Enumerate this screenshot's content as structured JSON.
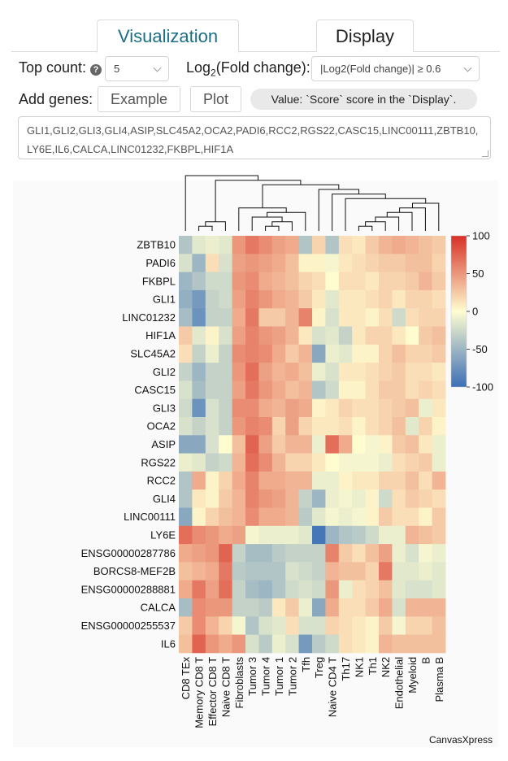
{
  "tabs": [
    {
      "label": "Visualization",
      "active": true
    },
    {
      "label": "Display",
      "active": false
    }
  ],
  "controls": {
    "top_count_label": "Top count:",
    "top_count_value": "5",
    "log2_label_prefix": "Log",
    "log2_label_sub": "2",
    "log2_label_suffix": "(Fold change):",
    "log2_value": "|Log2(Fold change)| ≥ 0.6",
    "add_genes_label": "Add genes:",
    "example_label": "Example",
    "plot_label": "Plot",
    "value_note": "Value: `Score` score in the `Display`.",
    "genes_text": "GLI1,GLI2,GLI3,GLI4,ASIP,SLC45A2,OCA2,PADI6,RCC2,RGS22,CASC15,LINC00111,ZBTB10,LY6E,IL6,CALCA,LINC01232,FKBPL,HIF1A"
  },
  "chart_data": {
    "type": "heatmap",
    "watermark": "CanvasXpress",
    "rows": [
      "ZBTB10",
      "PADI6",
      "FKBPL",
      "GLI1",
      "LINC01232",
      "HIF1A",
      "SLC45A2",
      "GLI2",
      "CASC15",
      "GLI3",
      "OCA2",
      "ASIP",
      "RGS22",
      "RCC2",
      "GLI4",
      "LINC00111",
      "LY6E",
      "ENSG00000287786",
      "BORCS8-MEF2B",
      "ENSG00000288881",
      "CALCA",
      "ENSG00000255537",
      "IL6"
    ],
    "columns": [
      "CD8 TEx",
      "Memory CD8 T",
      "Effector CD8 T",
      "Naive CD8 T",
      "Fibroblasts",
      "Tumor 3",
      "Tumor 4",
      "Tumor 1",
      "Tumor 2",
      "Tfh",
      "Treg",
      "Naive CD4 T",
      "Th17",
      "NK1",
      "Th1",
      "NK2",
      "Endothelial",
      "Myeloid",
      "B",
      "Plasma B"
    ],
    "values": [
      [
        -40,
        -15,
        -10,
        -15,
        50,
        65,
        55,
        45,
        40,
        -40,
        20,
        -40,
        15,
        10,
        25,
        35,
        40,
        35,
        30,
        25
      ],
      [
        -20,
        -50,
        15,
        -20,
        45,
        50,
        45,
        40,
        30,
        5,
        5,
        -5,
        10,
        15,
        20,
        25,
        25,
        30,
        30,
        20
      ],
      [
        -50,
        -40,
        -25,
        -25,
        50,
        55,
        40,
        35,
        30,
        20,
        15,
        0,
        15,
        15,
        10,
        20,
        20,
        25,
        35,
        25
      ],
      [
        -55,
        -70,
        -30,
        -25,
        45,
        60,
        50,
        40,
        35,
        25,
        10,
        -15,
        10,
        10,
        15,
        20,
        10,
        20,
        20,
        15
      ],
      [
        -45,
        -75,
        -30,
        -30,
        40,
        65,
        25,
        25,
        35,
        60,
        5,
        -20,
        10,
        10,
        5,
        15,
        -25,
        15,
        20,
        20
      ],
      [
        25,
        -15,
        5,
        -20,
        45,
        60,
        50,
        45,
        35,
        10,
        -20,
        -15,
        -30,
        10,
        20,
        20,
        10,
        0,
        25,
        30
      ],
      [
        15,
        -30,
        -10,
        -30,
        55,
        60,
        55,
        40,
        25,
        35,
        -60,
        -10,
        -15,
        5,
        5,
        20,
        30,
        20,
        20,
        25
      ],
      [
        -30,
        -50,
        -30,
        -30,
        50,
        70,
        45,
        35,
        40,
        30,
        -10,
        -20,
        10,
        10,
        15,
        20,
        25,
        15,
        15,
        10
      ],
      [
        -20,
        -45,
        -30,
        -30,
        45,
        65,
        50,
        40,
        30,
        35,
        -40,
        -25,
        5,
        5,
        15,
        25,
        25,
        15,
        20,
        15
      ],
      [
        -25,
        -75,
        -20,
        -30,
        55,
        55,
        40,
        35,
        45,
        40,
        5,
        10,
        20,
        15,
        15,
        20,
        25,
        30,
        -10,
        10
      ],
      [
        -20,
        -30,
        -20,
        -30,
        50,
        60,
        55,
        20,
        45,
        20,
        10,
        10,
        15,
        5,
        15,
        20,
        30,
        -15,
        20,
        5
      ],
      [
        -60,
        -60,
        -20,
        0,
        30,
        75,
        45,
        25,
        35,
        35,
        -10,
        70,
        40,
        0,
        -5,
        5,
        25,
        30,
        10,
        -10
      ],
      [
        -10,
        -15,
        -30,
        -25,
        35,
        70,
        55,
        35,
        20,
        20,
        10,
        0,
        -5,
        -5,
        -5,
        -10,
        15,
        20,
        25,
        -10
      ],
      [
        -40,
        40,
        5,
        20,
        40,
        60,
        40,
        40,
        35,
        35,
        -10,
        -10,
        5,
        10,
        10,
        20,
        20,
        30,
        15,
        35
      ],
      [
        -40,
        10,
        5,
        25,
        35,
        60,
        50,
        45,
        35,
        -30,
        -50,
        -10,
        -5,
        -10,
        5,
        -25,
        15,
        25,
        20,
        15
      ],
      [
        -60,
        5,
        20,
        30,
        35,
        55,
        40,
        40,
        35,
        -35,
        -15,
        -5,
        -10,
        -5,
        5,
        25,
        15,
        15,
        5,
        25
      ],
      [
        70,
        55,
        50,
        40,
        45,
        -5,
        -10,
        -10,
        -10,
        -15,
        -95,
        -50,
        -40,
        -35,
        -25,
        -10,
        -10,
        35,
        30,
        25
      ],
      [
        40,
        45,
        50,
        75,
        -30,
        -45,
        -45,
        -35,
        -30,
        -30,
        -30,
        60,
        25,
        15,
        30,
        45,
        -10,
        -20,
        -5,
        -10
      ],
      [
        30,
        35,
        40,
        65,
        -35,
        -40,
        -40,
        -40,
        -20,
        -25,
        -30,
        35,
        30,
        30,
        20,
        65,
        -15,
        -15,
        -10,
        -15
      ],
      [
        40,
        65,
        45,
        70,
        -30,
        -45,
        -50,
        -40,
        -25,
        -20,
        -25,
        50,
        -10,
        15,
        20,
        30,
        -15,
        -20,
        -20,
        -15
      ],
      [
        -45,
        55,
        50,
        50,
        -30,
        -30,
        -35,
        10,
        25,
        -10,
        -60,
        40,
        15,
        15,
        25,
        40,
        -20,
        35,
        35,
        35
      ],
      [
        25,
        55,
        35,
        20,
        -5,
        -40,
        -20,
        -15,
        15,
        -20,
        -20,
        20,
        15,
        10,
        5,
        25,
        -5,
        20,
        20,
        30
      ],
      [
        30,
        75,
        50,
        40,
        50,
        -20,
        -35,
        -10,
        -20,
        -70,
        -35,
        -25,
        15,
        10,
        5,
        35,
        30,
        30,
        30,
        30
      ]
    ],
    "color_scale": {
      "min": -100,
      "max": 100,
      "low": "#3b6fb6",
      "mid": "#fffdd0",
      "high": "#d73027"
    },
    "legend_ticks": [
      100,
      50,
      0,
      -50,
      -100
    ],
    "row_dendrogram": [
      [
        14,
        15
      ],
      [
        13,
        24
      ],
      [
        12,
        11
      ],
      [
        10,
        26
      ],
      [
        9,
        27
      ],
      [
        7,
        8
      ],
      [
        6,
        29
      ],
      [
        5,
        30
      ],
      [
        3,
        4
      ],
      [
        32,
        31
      ],
      [
        1,
        2
      ],
      [
        0,
        34
      ],
      [
        35,
        33
      ],
      [
        36,
        28
      ],
      [
        18,
        19
      ],
      [
        17,
        38
      ],
      [
        16,
        39
      ],
      [
        21,
        22
      ],
      [
        20,
        41
      ],
      [
        40,
        42
      ],
      [
        37,
        43
      ]
    ],
    "col_dendrogram": [
      [
        1,
        2
      ],
      [
        20,
        3
      ],
      [
        6,
        7
      ],
      [
        8,
        22
      ],
      [
        5,
        23
      ],
      [
        24,
        9
      ],
      [
        25,
        4
      ],
      [
        13,
        14
      ],
      [
        27,
        15
      ],
      [
        28,
        16
      ],
      [
        29,
        17
      ],
      [
        30,
        18
      ],
      [
        31,
        19
      ],
      [
        12,
        32
      ],
      [
        11,
        33
      ],
      [
        10,
        34
      ],
      [
        26,
        35
      ],
      [
        21,
        36
      ],
      [
        0,
        37
      ]
    ]
  }
}
